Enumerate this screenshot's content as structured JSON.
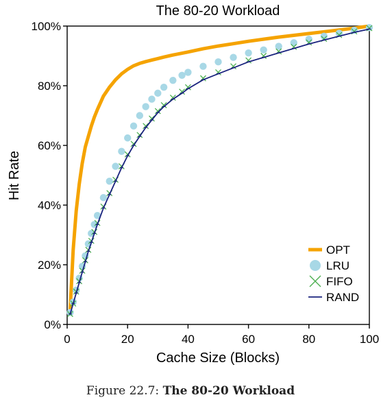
{
  "caption": {
    "prefix": "Figure 22.7: ",
    "title": "The 80-20 Workload"
  },
  "chart_data": {
    "type": "line",
    "title": "The 80-20 Workload",
    "xlabel": "Cache Size (Blocks)",
    "ylabel": "Hit Rate",
    "xlim": [
      0,
      100
    ],
    "ylim": [
      0,
      100
    ],
    "xticks": [
      0,
      20,
      40,
      60,
      80,
      100
    ],
    "xtick_labels": [
      "0",
      "20",
      "40",
      "60",
      "80",
      "100"
    ],
    "yticks": [
      0,
      20,
      40,
      60,
      80,
      100
    ],
    "ytick_labels": [
      "0%",
      "20%",
      "40%",
      "60%",
      "80%",
      "100%"
    ],
    "grid": false,
    "legend_position": "bottom-right",
    "x": [
      1,
      2,
      3,
      4,
      5,
      6,
      7,
      8,
      9,
      10,
      12,
      14,
      16,
      18,
      20,
      22,
      24,
      26,
      28,
      30,
      32,
      35,
      38,
      40,
      45,
      50,
      55,
      60,
      65,
      70,
      75,
      80,
      85,
      90,
      95,
      100
    ],
    "series": [
      {
        "name": "OPT",
        "style": "line",
        "color": "#f5a300",
        "values": [
          5,
          25,
          38,
          47,
          54,
          59.5,
          63,
          66.5,
          69.5,
          72,
          76.5,
          79.5,
          82,
          84,
          85.5,
          86.7,
          87.5,
          88.1,
          88.6,
          89.1,
          89.6,
          90.3,
          90.9,
          91.3,
          92.4,
          93.3,
          94.1,
          94.9,
          95.6,
          96.3,
          96.9,
          97.5,
          98.1,
          98.7,
          99.3,
          100
        ]
      },
      {
        "name": "LRU",
        "style": "circle",
        "color": "#a8d8e6",
        "values": [
          4,
          7.5,
          11.5,
          15.5,
          19.5,
          23,
          27,
          30.5,
          33.5,
          36.5,
          42.5,
          48,
          53,
          58,
          62.5,
          66.5,
          70,
          73,
          75.5,
          77.5,
          79.5,
          81.8,
          83.5,
          84.5,
          86.5,
          88,
          89.5,
          91,
          92,
          93.2,
          94.4,
          95.6,
          96.6,
          97.6,
          98.6,
          99.5
        ]
      },
      {
        "name": "FIFO",
        "style": "x",
        "color": "#4caf50",
        "values": [
          3.5,
          7,
          11,
          14.5,
          18,
          21.5,
          25,
          28,
          31,
          34,
          39.5,
          44,
          48.5,
          53,
          57,
          60.5,
          63.5,
          66.5,
          69,
          71.5,
          73.5,
          76,
          78,
          79.5,
          82.5,
          84.5,
          86.5,
          88.5,
          90,
          91.5,
          93,
          94.5,
          95.7,
          97,
          98.2,
          99.3
        ]
      },
      {
        "name": "RAND",
        "style": "line",
        "color": "#1a237e",
        "values": [
          3.5,
          7,
          10.5,
          14,
          17.5,
          21,
          24.5,
          27.5,
          30.5,
          33.5,
          39,
          43.5,
          48,
          52.5,
          56.5,
          60,
          63,
          66,
          68.5,
          71,
          73,
          75.5,
          77.5,
          79,
          82,
          84,
          86,
          88,
          89.5,
          91,
          92.5,
          94,
          95.3,
          96.6,
          97.9,
          99
        ]
      }
    ]
  }
}
